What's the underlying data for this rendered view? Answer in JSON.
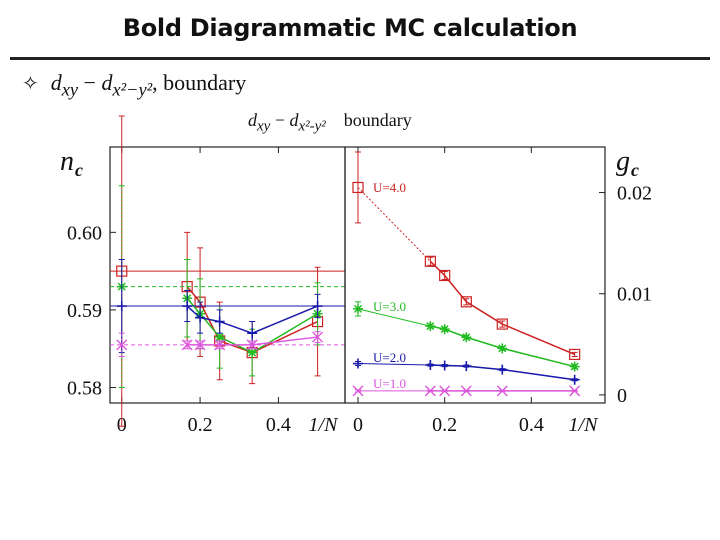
{
  "slide": {
    "title": "Bold Diagrammatic MC calculation",
    "bullet_symbol": "✧",
    "bullet_expr": {
      "a": "d",
      "a_sub": "xy",
      "minus": "−",
      "b": "d",
      "b_sub": "x²−y²",
      "comma": ",",
      "suffix": "boundary"
    },
    "figure_header": {
      "a": "d",
      "a_sub": "xy",
      "minus": "−",
      "b": "d",
      "b_sub": "x²-y²",
      "suffix": "boundary"
    }
  },
  "colors": {
    "red": "#cc2222",
    "green": "#22bb22",
    "blue": "#1a1aaa",
    "magenta": "#dd55dd",
    "axis": "#222222"
  },
  "chart_data": [
    {
      "type": "line",
      "name": "left-panel",
      "ylabel": "n",
      "ylabel_sub": "c",
      "xlabel": "1/N",
      "xlim": [
        -0.03,
        0.57
      ],
      "ylim": [
        0.578,
        0.611
      ],
      "xticks": [
        0,
        0.2,
        0.4
      ],
      "xtick_labels": [
        "0",
        "0.2",
        "0.4"
      ],
      "yticks": [
        0.58,
        0.59,
        0.6
      ],
      "ytick_labels": [
        "0.58",
        "0.59",
        "0.60"
      ],
      "series": [
        {
          "name": "U=4.0",
          "color": "red",
          "marker": "square",
          "points": [
            [
              0.167,
              0.593,
              0.007
            ],
            [
              0.2,
              0.591,
              0.007
            ],
            [
              0.25,
              0.586,
              0.005
            ],
            [
              0.333,
              0.5845,
              0.004
            ],
            [
              0.5,
              0.5885,
              0.007
            ]
          ],
          "extrapolation": {
            "x": 0,
            "y": 0.595,
            "err": 0.02
          }
        },
        {
          "name": "U=3.0",
          "color": "green",
          "marker": "asterisk",
          "points": [
            [
              0.167,
              0.5915,
              0.005
            ],
            [
              0.2,
              0.5895,
              0.0045
            ],
            [
              0.25,
              0.5865,
              0.004
            ],
            [
              0.333,
              0.5845,
              0.003
            ],
            [
              0.5,
              0.5895,
              0.004
            ]
          ],
          "extrapolation": {
            "x": 0,
            "y": 0.593,
            "err": 0.013
          }
        },
        {
          "name": "U=2.0",
          "color": "blue",
          "marker": "plus",
          "points": [
            [
              0.167,
              0.5905,
              0.002
            ],
            [
              0.2,
              0.589,
              0.002
            ],
            [
              0.25,
              0.5885,
              0.0015
            ],
            [
              0.333,
              0.587,
              0.0015
            ],
            [
              0.5,
              0.5905,
              0.0015
            ]
          ],
          "extrapolation": {
            "x": 0,
            "y": 0.5905,
            "err": 0.006
          }
        },
        {
          "name": "U=1.0",
          "color": "magenta",
          "marker": "cross",
          "points": [
            [
              0.167,
              0.5855,
              0.0005
            ],
            [
              0.2,
              0.5855,
              0.0005
            ],
            [
              0.25,
              0.5855,
              0.0005
            ],
            [
              0.333,
              0.5855,
              0.0005
            ],
            [
              0.5,
              0.5865,
              0.0007
            ]
          ],
          "extrapolation": {
            "x": 0,
            "y": 0.5855,
            "err": 0.0015
          }
        }
      ]
    },
    {
      "type": "line",
      "name": "right-panel",
      "ylabel": "g",
      "ylabel_sub": "c",
      "xlabel": "1/N",
      "xlim": [
        -0.03,
        0.57
      ],
      "ylim": [
        -0.0008,
        0.0245
      ],
      "xticks": [
        0,
        0.2,
        0.4
      ],
      "xtick_labels": [
        "0",
        "0.2",
        "0.4"
      ],
      "yticks": [
        0,
        0.01,
        0.02
      ],
      "ytick_labels": [
        "0",
        "0.01",
        "0.02"
      ],
      "series": [
        {
          "name": "U=4.0",
          "color": "red",
          "marker": "square",
          "points": [
            [
              0.167,
              0.0132,
              0.0004
            ],
            [
              0.2,
              0.0118,
              0.0004
            ],
            [
              0.25,
              0.0092,
              0.0003
            ],
            [
              0.333,
              0.007,
              0.0003
            ],
            [
              0.5,
              0.004,
              0.0002
            ]
          ],
          "extrapolation": {
            "x": 0,
            "y": 0.0205,
            "err": 0.0035
          }
        },
        {
          "name": "U=3.0",
          "color": "green",
          "marker": "asterisk",
          "points": [
            [
              0.167,
              0.0068,
              0.0002
            ],
            [
              0.2,
              0.0065,
              0.0002
            ],
            [
              0.25,
              0.0057,
              0.0002
            ],
            [
              0.333,
              0.0046,
              0.0002
            ],
            [
              0.5,
              0.0028,
              0.0002
            ]
          ],
          "extrapolation": {
            "x": 0,
            "y": 0.0085,
            "err": 0.0007
          }
        },
        {
          "name": "U=2.0",
          "color": "blue",
          "marker": "plus",
          "points": [
            [
              0.167,
              0.00295,
              0.0001
            ],
            [
              0.2,
              0.0029,
              0.0001
            ],
            [
              0.25,
              0.00285,
              0.0001
            ],
            [
              0.333,
              0.0025,
              0.0001
            ],
            [
              0.5,
              0.0015,
              0.0001
            ]
          ],
          "extrapolation": {
            "x": 0,
            "y": 0.0031,
            "err": 0.0002
          }
        },
        {
          "name": "U=1.0",
          "color": "magenta",
          "marker": "cross",
          "points": [
            [
              0.167,
              0.0004,
              5e-05
            ],
            [
              0.2,
              0.0004,
              5e-05
            ],
            [
              0.25,
              0.0004,
              5e-05
            ],
            [
              0.333,
              0.0004,
              5e-05
            ],
            [
              0.5,
              0.0004,
              5e-05
            ]
          ],
          "extrapolation": {
            "x": 0,
            "y": 0.0004,
            "err": 0.0001
          }
        }
      ]
    }
  ]
}
